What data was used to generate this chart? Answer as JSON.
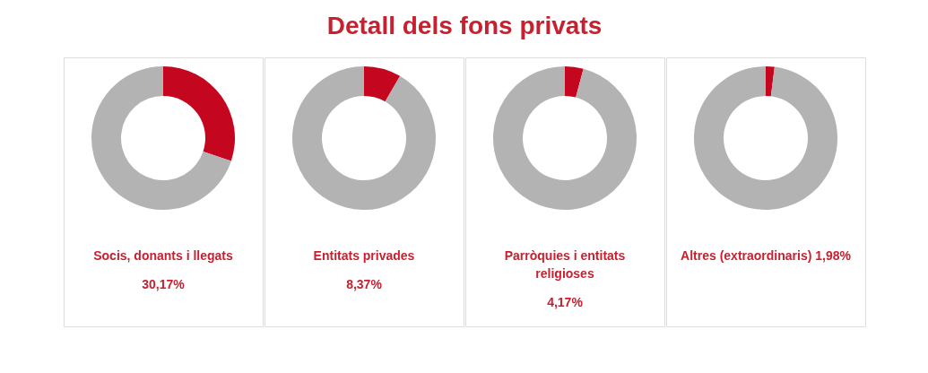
{
  "chart_data": [
    {
      "type": "other",
      "title": "Detall dels fons privats"
    },
    {
      "type": "donut",
      "title": "Socis, donants i llegats",
      "categories": [
        null,
        null
      ],
      "values": [
        30.17,
        69.83
      ],
      "colors": [
        "#c4071f",
        "#b3b3b3"
      ],
      "annotations": [
        "30,17%"
      ]
    },
    {
      "type": "donut",
      "title": "Entitats privades",
      "categories": [
        null,
        null
      ],
      "values": [
        8.37,
        91.63
      ],
      "colors": [
        "#c4071f",
        "#b3b3b3"
      ],
      "annotations": [
        "8,37%"
      ]
    },
    {
      "type": "donut",
      "title": "Parròquies i entitats religioses",
      "categories": [
        null,
        null
      ],
      "values": [
        4.17,
        95.83
      ],
      "colors": [
        "#c4071f",
        "#b3b3b3"
      ],
      "annotations": [
        "4,17%"
      ]
    },
    {
      "type": "donut",
      "title": "Altres (extraordinaris) 1,98%",
      "categories": [
        null,
        null
      ],
      "values": [
        1.98,
        98.02
      ],
      "colors": [
        "#c4071f",
        "#b3b3b3"
      ]
    }
  ]
}
